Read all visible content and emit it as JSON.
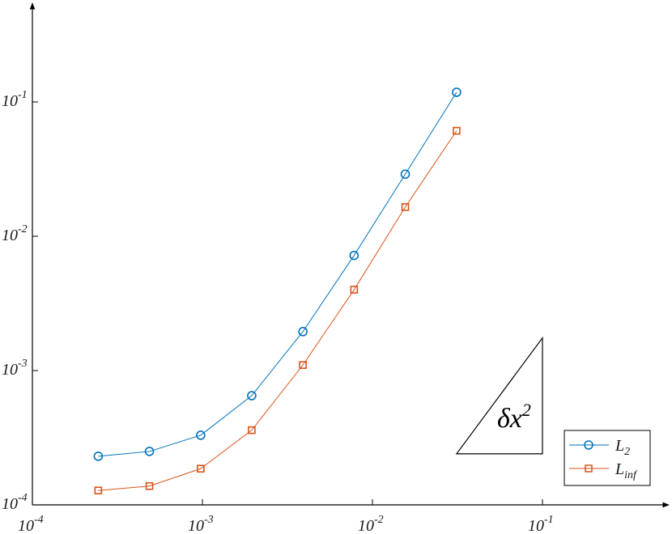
{
  "chart_data": {
    "type": "line",
    "xscale": "log",
    "yscale": "log",
    "xlim": [
      0.0001,
      0.5
    ],
    "ylim": [
      0.0001,
      0.5
    ],
    "x_ticks": [
      {
        "base": "10",
        "exp": "-4"
      },
      {
        "base": "10",
        "exp": "-3"
      },
      {
        "base": "10",
        "exp": "-2"
      },
      {
        "base": "10",
        "exp": "-1"
      }
    ],
    "y_ticks": [
      {
        "base": "10",
        "exp": "-4"
      },
      {
        "base": "10",
        "exp": "-3"
      },
      {
        "base": "10",
        "exp": "-2"
      },
      {
        "base": "10",
        "exp": "-1"
      }
    ],
    "x": [
      0.000244,
      0.000488,
      0.000977,
      0.00195,
      0.0039,
      0.0078,
      0.0156,
      0.03125
    ],
    "series": [
      {
        "name": "L",
        "name_sub": "2",
        "color": "#0072BD",
        "marker": "circle",
        "values": [
          0.00023,
          0.00025,
          0.00033,
          0.00065,
          0.00195,
          0.0072,
          0.029,
          0.118
        ]
      },
      {
        "name": "L",
        "name_sub": "inf",
        "color": "#D95319",
        "marker": "square",
        "values": [
          0.000128,
          0.000138,
          0.000186,
          0.00036,
          0.0011,
          0.004,
          0.0165,
          0.061
        ]
      }
    ],
    "annotation": {
      "text": "δx",
      "sup": "2",
      "triangle_x": [
        0.03125,
        0.1
      ],
      "triangle_y": [
        0.00024,
        0.00175
      ]
    },
    "legend": {
      "position": "bottom-right"
    },
    "grid": false,
    "title": "",
    "xlabel": "",
    "ylabel": ""
  }
}
